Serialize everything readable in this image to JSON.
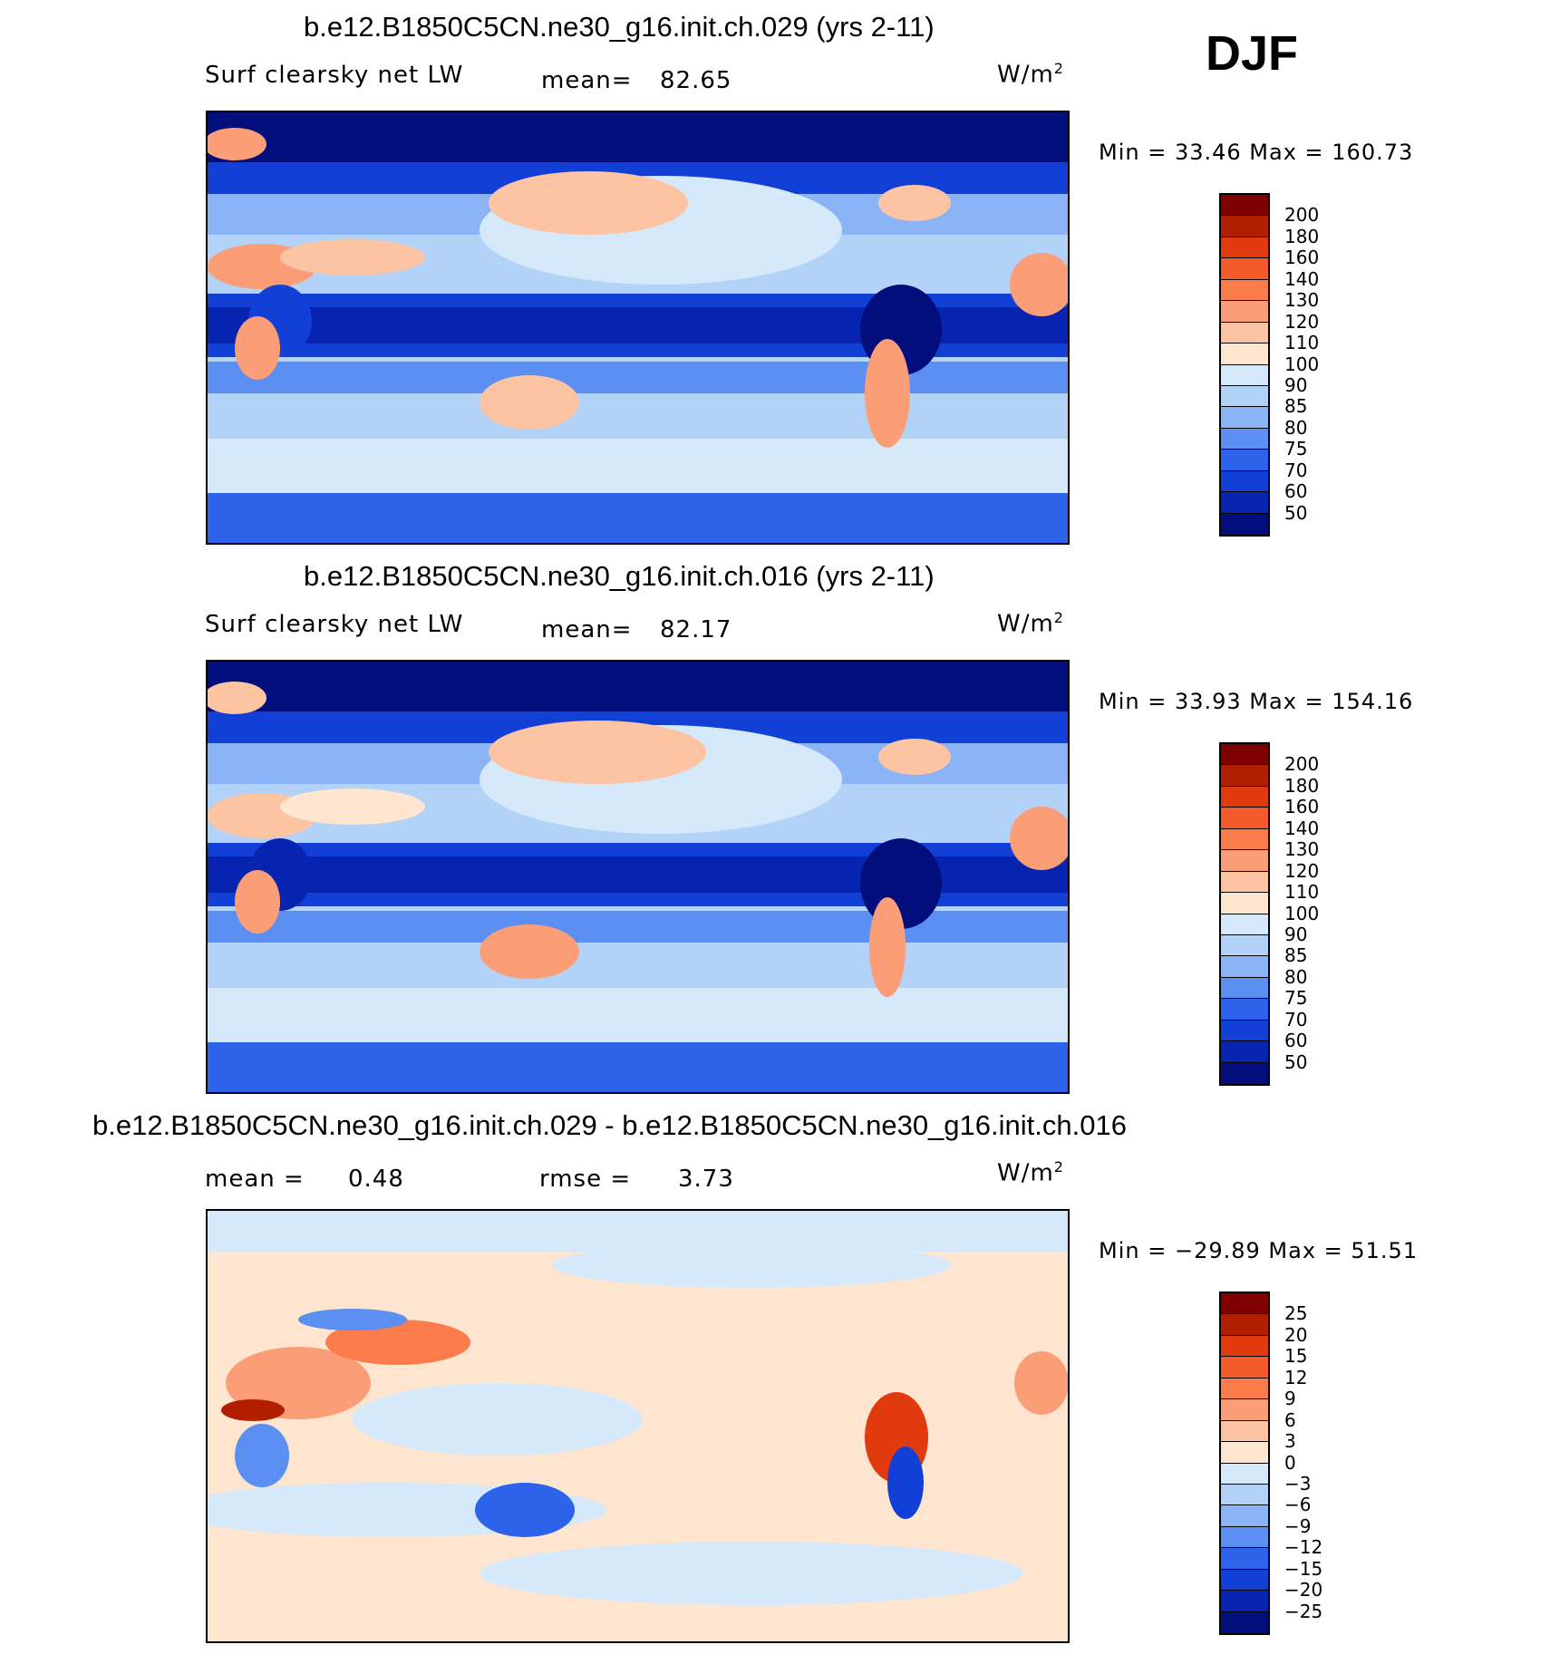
{
  "season": "DJF",
  "panels": [
    {
      "title": "b.e12.B1850C5CN.ne30_g16.init.ch.029 (yrs 2-11)",
      "variable": "Surf clearsky net LW",
      "stat1_label": "mean=",
      "stat1_value": "82.65",
      "stat2_label": "",
      "stat2_value": "",
      "units": "W/m",
      "units_sup": "2",
      "minmax": "Min =   33.46  Max  =  160.73",
      "colorbar_ticks": [
        "200",
        "180",
        "160",
        "140",
        "130",
        "120",
        "110",
        "100",
        "90",
        "85",
        "80",
        "75",
        "70",
        "60",
        "50"
      ],
      "colorbar_colors": [
        "#7f0000",
        "#b21e00",
        "#e03a0e",
        "#f55a2a",
        "#fb7b4b",
        "#fb9e77",
        "#fdc4a4",
        "#fee5d0",
        "#d6e9fa",
        "#b3d2f7",
        "#8ab4f5",
        "#5b8ff2",
        "#2d63ea",
        "#1240d6",
        "#0724b0",
        "#020e7c"
      ]
    },
    {
      "title": "b.e12.B1850C5CN.ne30_g16.init.ch.016 (yrs 2-11)",
      "variable": "Surf clearsky net LW",
      "stat1_label": "mean=",
      "stat1_value": "82.17",
      "stat2_label": "",
      "stat2_value": "",
      "units": "W/m",
      "units_sup": "2",
      "minmax": "Min =   33.93  Max  =  154.16",
      "colorbar_ticks": [
        "200",
        "180",
        "160",
        "140",
        "130",
        "120",
        "110",
        "100",
        "90",
        "85",
        "80",
        "75",
        "70",
        "60",
        "50"
      ],
      "colorbar_colors": [
        "#7f0000",
        "#b21e00",
        "#e03a0e",
        "#f55a2a",
        "#fb7b4b",
        "#fb9e77",
        "#fdc4a4",
        "#fee5d0",
        "#d6e9fa",
        "#b3d2f7",
        "#8ab4f5",
        "#5b8ff2",
        "#2d63ea",
        "#1240d6",
        "#0724b0",
        "#020e7c"
      ]
    },
    {
      "title": "b.e12.B1850C5CN.ne30_g16.init.ch.029 - b.e12.B1850C5CN.ne30_g16.init.ch.016",
      "variable": "",
      "stat1_label": "mean =",
      "stat1_value": "0.48",
      "stat2_label": "rmse =",
      "stat2_value": "3.73",
      "units": "W/m",
      "units_sup": "2",
      "minmax": "Min  = −29.89  Max  =    51.51",
      "colorbar_ticks": [
        "25",
        "20",
        "15",
        "12",
        "9",
        "6",
        "3",
        "0",
        "−3",
        "−6",
        "−9",
        "−12",
        "−15",
        "−20",
        "−25"
      ],
      "colorbar_colors": [
        "#7f0000",
        "#b21e00",
        "#e03a0e",
        "#f55a2a",
        "#fb7b4b",
        "#fb9e77",
        "#fdc4a4",
        "#fee5d0",
        "#d6e9fa",
        "#b3d2f7",
        "#8ab4f5",
        "#5b8ff2",
        "#2d63ea",
        "#1240d6",
        "#0724b0",
        "#020e7c"
      ]
    }
  ]
}
